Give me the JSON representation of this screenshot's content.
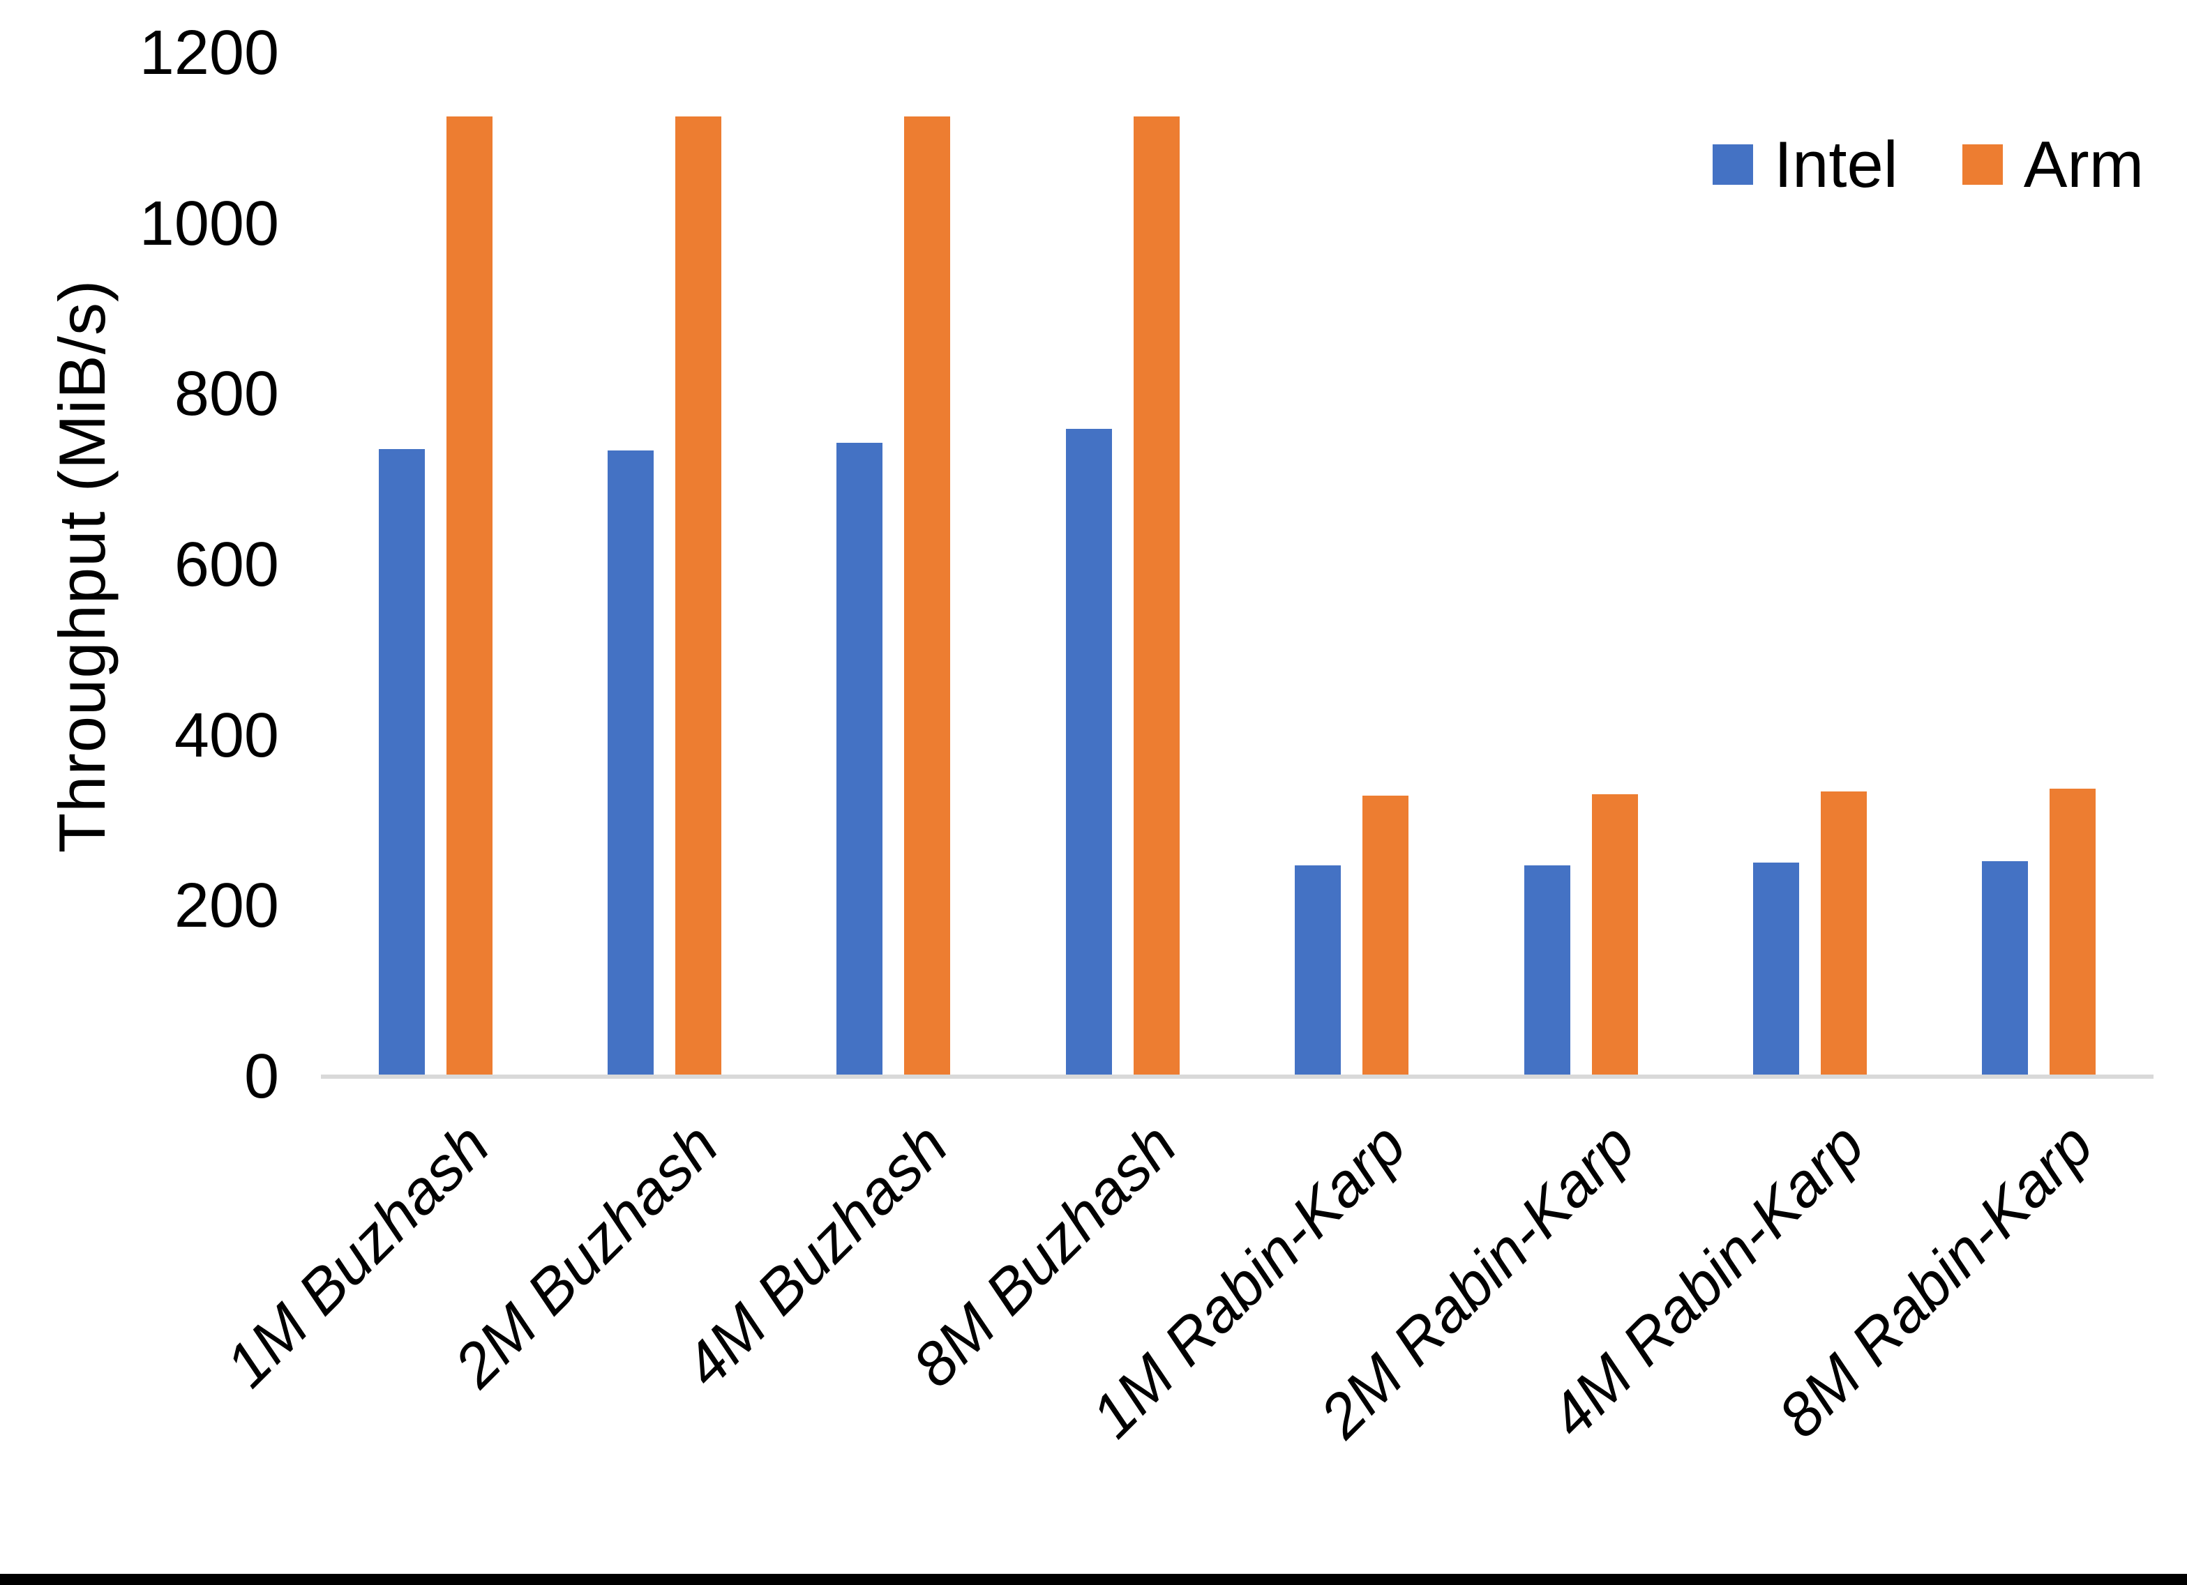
{
  "chart_data": {
    "type": "bar",
    "title": "",
    "xlabel": "",
    "ylabel": "Throughput (MiB/s)",
    "ylim": [
      0,
      1200
    ],
    "yticks": [
      0,
      200,
      400,
      600,
      800,
      1000,
      1200
    ],
    "grid": false,
    "legend_position": "top-right",
    "background": "#FFFFFF",
    "axis_line_color": "#D9D9D9",
    "categories": [
      "1M Buzhash",
      "2M Buzhash",
      "4M Buzhash",
      "8M Buzhash",
      "1M Rabin-Karp",
      "2M Rabin-Karp",
      "4M Rabin-Karp",
      "8M Rabin-Karp"
    ],
    "series": [
      {
        "name": "Intel",
        "color": "#4472C4",
        "values": [
          737,
          736,
          745,
          761,
          249,
          249,
          253,
          254
        ]
      },
      {
        "name": "Arm",
        "color": "#ED7D31",
        "values": [
          1127,
          1127,
          1127,
          1127,
          331,
          333,
          336,
          339
        ]
      }
    ]
  }
}
